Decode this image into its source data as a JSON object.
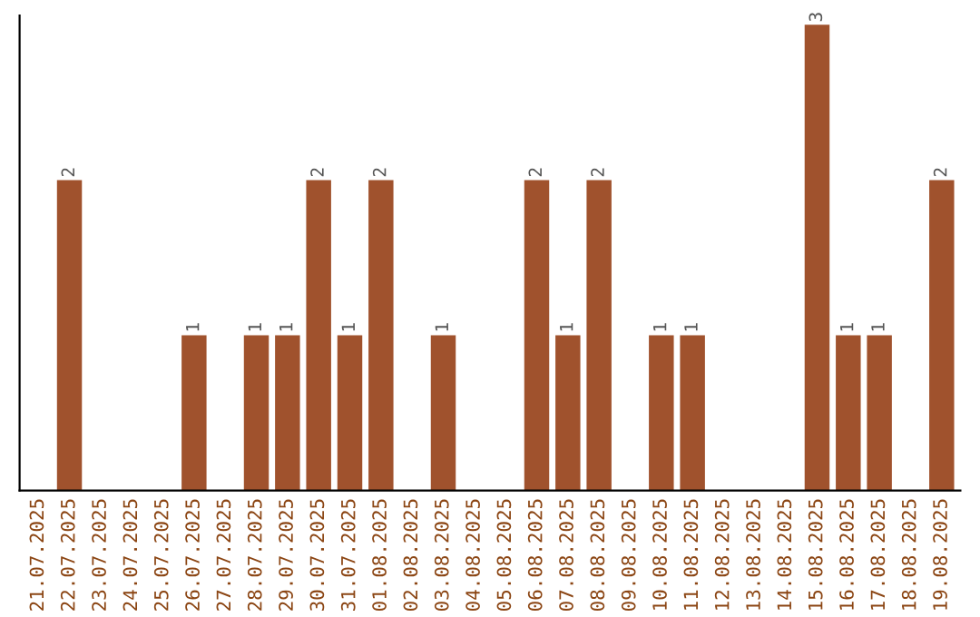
{
  "chart_data": {
    "type": "bar",
    "categories": [
      "21.07.2025",
      "22.07.2025",
      "23.07.2025",
      "24.07.2025",
      "25.07.2025",
      "26.07.2025",
      "27.07.2025",
      "28.07.2025",
      "29.07.2025",
      "30.07.2025",
      "31.07.2025",
      "01.08.2025",
      "02.08.2025",
      "03.08.2025",
      "04.08.2025",
      "05.08.2025",
      "06.08.2025",
      "07.08.2025",
      "08.08.2025",
      "09.08.2025",
      "10.08.2025",
      "11.08.2025",
      "12.08.2025",
      "13.08.2025",
      "14.08.2025",
      "15.08.2025",
      "16.08.2025",
      "17.08.2025",
      "18.08.2025",
      "19.08.2025"
    ],
    "values": [
      0,
      2,
      0,
      0,
      0,
      1,
      0,
      1,
      1,
      2,
      1,
      2,
      0,
      1,
      0,
      0,
      2,
      1,
      2,
      0,
      1,
      1,
      0,
      0,
      0,
      3,
      1,
      1,
      0,
      2
    ],
    "value_labels": [
      null,
      "2",
      null,
      null,
      null,
      "1",
      null,
      "1",
      "1",
      "2",
      "1",
      "2",
      null,
      "1",
      null,
      null,
      "2",
      "1",
      "2",
      null,
      "1",
      "1",
      null,
      null,
      null,
      "3",
      "1",
      "1",
      null,
      "2"
    ],
    "color": "#a0522d",
    "ylim": [
      0,
      3.06
    ],
    "tick_labels": "x",
    "grid": false,
    "legend": false
  }
}
